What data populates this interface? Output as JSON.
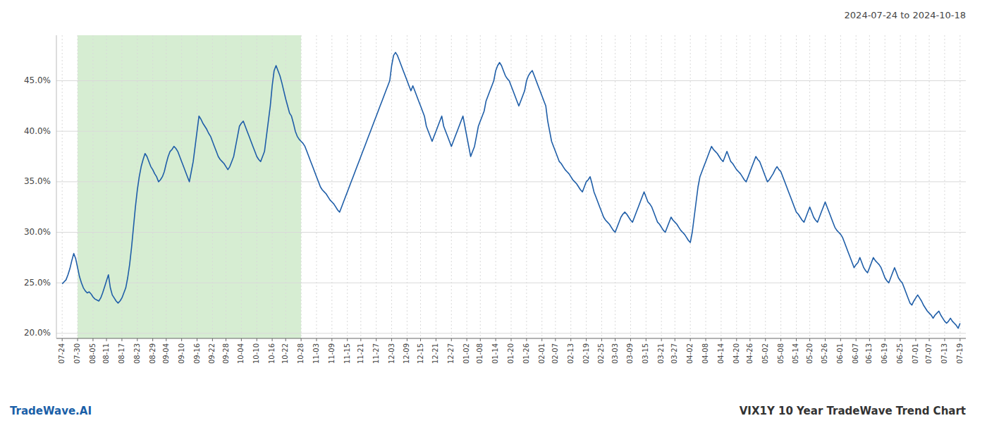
{
  "chart_data": {
    "type": "line",
    "title": "VIX1Y 10 Year TradeWave Trend Chart",
    "subtitle": "2024-07-24 to 2024-10-18",
    "annotations": [
      "TradeWave.AI"
    ],
    "color": "#1f5ea8",
    "grid": true,
    "highlight": {
      "start": "07-30",
      "end": "10-28",
      "color": "#d6edd2"
    },
    "ylim": [
      19.5,
      49.5
    ],
    "yticks": [
      {
        "value": 20.0,
        "label": "20.0%"
      },
      {
        "value": 25.0,
        "label": "25.0%"
      },
      {
        "value": 30.0,
        "label": "30.0%"
      },
      {
        "value": 35.0,
        "label": "35.0%"
      },
      {
        "value": 40.0,
        "label": "40.0%"
      },
      {
        "value": 45.0,
        "label": "45.0%"
      }
    ],
    "categories": [
      "07-24",
      null,
      null,
      null,
      null,
      null,
      null,
      null,
      "07-30",
      null,
      null,
      null,
      null,
      null,
      null,
      null,
      "08-05",
      null,
      null,
      null,
      null,
      null,
      null,
      "08-11",
      null,
      null,
      null,
      null,
      null,
      null,
      null,
      "08-17",
      null,
      null,
      null,
      null,
      null,
      null,
      null,
      "08-23",
      null,
      null,
      null,
      null,
      null,
      null,
      null,
      "08-29",
      null,
      null,
      null,
      null,
      null,
      null,
      "09-04",
      null,
      null,
      null,
      null,
      null,
      null,
      null,
      "09-10",
      null,
      null,
      null,
      null,
      null,
      null,
      null,
      "09-16",
      null,
      null,
      null,
      null,
      null,
      null,
      null,
      "09-22",
      null,
      null,
      null,
      null,
      null,
      null,
      "09-28",
      null,
      null,
      null,
      null,
      null,
      null,
      null,
      "10-04",
      null,
      null,
      null,
      null,
      null,
      null,
      null,
      "10-10",
      null,
      null,
      null,
      null,
      null,
      null,
      null,
      "10-16",
      null,
      null,
      null,
      null,
      null,
      null,
      "10-22",
      null,
      null,
      null,
      null,
      null,
      null,
      null,
      "10-28",
      null,
      null,
      null,
      null,
      null,
      null,
      null,
      "11-03",
      null,
      null,
      null,
      null,
      null,
      null,
      null,
      "11-09",
      null,
      null,
      null,
      null,
      null,
      null,
      null,
      "11-15",
      null,
      null,
      null,
      null,
      null,
      null,
      "11-21",
      null,
      null,
      null,
      null,
      null,
      null,
      null,
      "11-27",
      null,
      null,
      null,
      null,
      null,
      null,
      null,
      "12-03",
      null,
      null,
      null,
      null,
      null,
      null,
      null,
      "12-09",
      null,
      null,
      null,
      null,
      null,
      null,
      "12-15",
      null,
      null,
      null,
      null,
      null,
      null,
      null,
      "12-21",
      null,
      null,
      null,
      null,
      null,
      null,
      null,
      "12-27",
      null,
      null,
      null,
      null,
      null,
      null,
      null,
      "01-02",
      null,
      null,
      null,
      null,
      null,
      null,
      "01-08",
      null,
      null,
      null,
      null,
      null,
      null,
      null,
      "01-14",
      null,
      null,
      null,
      null,
      null,
      null,
      null,
      "01-20",
      null,
      null,
      null,
      null,
      null,
      null,
      null,
      "01-26",
      null,
      null,
      null,
      null,
      null,
      null,
      null,
      "02-01",
      null,
      null,
      null,
      null,
      null,
      null,
      "02-07",
      null,
      null,
      null,
      null,
      null,
      null,
      null,
      "02-13",
      null,
      null,
      null,
      null,
      null,
      null,
      null,
      "02-19",
      null,
      null,
      null,
      null,
      null,
      null,
      null,
      "02-25",
      null,
      null,
      null,
      null,
      null,
      null,
      "03-03",
      null,
      null,
      null,
      null,
      null,
      null,
      null,
      "03-09",
      null,
      null,
      null,
      null,
      null,
      null,
      null,
      "03-15",
      null,
      null,
      null,
      null,
      null,
      null,
      null,
      "03-21",
      null,
      null,
      null,
      null,
      null,
      null,
      "03-27",
      null,
      null,
      null,
      null,
      null,
      null,
      null,
      "04-02",
      null,
      null,
      null,
      null,
      null,
      null,
      null,
      "04-08",
      null,
      null,
      null,
      null,
      null,
      null,
      null,
      "04-14",
      null,
      null,
      null,
      null,
      null,
      null,
      null,
      "04-20",
      null,
      null,
      null,
      null,
      null,
      null,
      "04-26",
      null,
      null,
      null,
      null,
      null,
      null,
      null,
      "05-02",
      null,
      null,
      null,
      null,
      null,
      null,
      null,
      "05-08",
      null,
      null,
      null,
      null,
      null,
      null,
      null,
      "05-14",
      null,
      null,
      null,
      null,
      null,
      null,
      "05-20",
      null,
      null,
      null,
      null,
      null,
      null,
      null,
      "05-26",
      null,
      null,
      null,
      null,
      null,
      null,
      null,
      "06-01",
      null,
      null,
      null,
      null,
      null,
      null,
      null,
      "06-07",
      null,
      null,
      null,
      null,
      null,
      null,
      "06-13",
      null,
      null,
      null,
      null,
      null,
      null,
      null,
      "06-19",
      null,
      null,
      null,
      null,
      null,
      null,
      null,
      "06-25",
      null,
      null,
      null,
      null,
      null,
      null,
      null,
      "07-01",
      null,
      null,
      null,
      null,
      null,
      null,
      "07-07",
      null,
      null,
      null,
      null,
      null,
      null,
      null,
      "07-13",
      null,
      null,
      null,
      null,
      null,
      null,
      null,
      "07-19"
    ],
    "values": [
      24.9,
      25.1,
      25.3,
      25.8,
      26.4,
      27.2,
      27.9,
      27.4,
      26.5,
      25.6,
      25.0,
      24.5,
      24.2,
      24.0,
      24.1,
      23.9,
      23.6,
      23.4,
      23.3,
      23.2,
      23.5,
      24.0,
      24.6,
      25.2,
      25.8,
      24.5,
      23.8,
      23.5,
      23.2,
      23.0,
      23.2,
      23.5,
      24.0,
      24.5,
      25.5,
      26.8,
      28.5,
      30.5,
      32.5,
      34.2,
      35.5,
      36.5,
      37.2,
      37.8,
      37.5,
      37.0,
      36.5,
      36.2,
      35.8,
      35.5,
      35.0,
      35.2,
      35.5,
      36.0,
      36.8,
      37.5,
      38.0,
      38.2,
      38.5,
      38.3,
      38.0,
      37.5,
      37.0,
      36.5,
      36.0,
      35.5,
      35.0,
      36.0,
      37.0,
      38.5,
      40.0,
      41.5,
      41.2,
      40.8,
      40.5,
      40.2,
      39.8,
      39.5,
      39.0,
      38.5,
      38.0,
      37.5,
      37.2,
      37.0,
      36.8,
      36.5,
      36.2,
      36.5,
      37.0,
      37.5,
      38.5,
      39.5,
      40.5,
      40.8,
      41.0,
      40.5,
      40.0,
      39.5,
      39.0,
      38.5,
      38.0,
      37.5,
      37.2,
      37.0,
      37.5,
      38.0,
      39.5,
      41.0,
      42.5,
      44.5,
      46.0,
      46.5,
      46.0,
      45.5,
      44.8,
      44.0,
      43.2,
      42.5,
      41.8,
      41.5,
      40.8,
      40.0,
      39.5,
      39.2,
      39.0,
      38.8,
      38.5,
      38.0,
      37.5,
      37.0,
      36.5,
      36.0,
      35.5,
      35.0,
      34.5,
      34.2,
      34.0,
      33.8,
      33.5,
      33.2,
      33.0,
      32.8,
      32.5,
      32.2,
      32.0,
      32.5,
      33.0,
      33.5,
      34.0,
      34.5,
      35.0,
      35.5,
      36.0,
      36.5,
      37.0,
      37.5,
      38.0,
      38.5,
      39.0,
      39.5,
      40.0,
      40.5,
      41.0,
      41.5,
      42.0,
      42.5,
      43.0,
      43.5,
      44.0,
      44.5,
      45.0,
      46.5,
      47.5,
      47.8,
      47.5,
      47.0,
      46.5,
      46.0,
      45.5,
      45.0,
      44.5,
      44.0,
      44.5,
      44.0,
      43.5,
      43.0,
      42.5,
      42.0,
      41.5,
      40.5,
      40.0,
      39.5,
      39.0,
      39.5,
      40.0,
      40.5,
      41.0,
      41.5,
      40.5,
      40.0,
      39.5,
      39.0,
      38.5,
      39.0,
      39.5,
      40.0,
      40.5,
      41.0,
      41.5,
      40.5,
      39.5,
      38.5,
      37.5,
      38.0,
      38.5,
      39.5,
      40.5,
      41.0,
      41.5,
      42.0,
      43.0,
      43.5,
      44.0,
      44.5,
      45.0,
      46.0,
      46.5,
      46.8,
      46.5,
      46.0,
      45.5,
      45.2,
      45.0,
      44.5,
      44.0,
      43.5,
      43.0,
      42.5,
      43.0,
      43.5,
      44.0,
      45.0,
      45.5,
      45.8,
      46.0,
      45.5,
      45.0,
      44.5,
      44.0,
      43.5,
      43.0,
      42.5,
      41.0,
      40.0,
      39.0,
      38.5,
      38.0,
      37.5,
      37.0,
      36.8,
      36.5,
      36.2,
      36.0,
      35.8,
      35.5,
      35.2,
      35.0,
      34.8,
      34.5,
      34.2,
      34.0,
      34.5,
      35.0,
      35.2,
      35.5,
      34.8,
      34.0,
      33.5,
      33.0,
      32.5,
      32.0,
      31.5,
      31.2,
      31.0,
      30.8,
      30.5,
      30.2,
      30.0,
      30.5,
      31.0,
      31.5,
      31.8,
      32.0,
      31.8,
      31.5,
      31.2,
      31.0,
      31.5,
      32.0,
      32.5,
      33.0,
      33.5,
      34.0,
      33.5,
      33.0,
      32.8,
      32.5,
      32.0,
      31.5,
      31.0,
      30.8,
      30.5,
      30.2,
      30.0,
      30.5,
      31.0,
      31.5,
      31.2,
      31.0,
      30.8,
      30.5,
      30.2,
      30.0,
      29.8,
      29.5,
      29.2,
      29.0,
      30.0,
      31.5,
      33.0,
      34.5,
      35.5,
      36.0,
      36.5,
      37.0,
      37.5,
      38.0,
      38.5,
      38.2,
      38.0,
      37.8,
      37.5,
      37.2,
      37.0,
      37.5,
      38.0,
      37.5,
      37.0,
      36.8,
      36.5,
      36.2,
      36.0,
      35.8,
      35.5,
      35.2,
      35.0,
      35.5,
      36.0,
      36.5,
      37.0,
      37.5,
      37.2,
      37.0,
      36.5,
      36.0,
      35.5,
      35.0,
      35.2,
      35.5,
      35.8,
      36.2,
      36.5,
      36.2,
      36.0,
      35.5,
      35.0,
      34.5,
      34.0,
      33.5,
      33.0,
      32.5,
      32.0,
      31.8,
      31.5,
      31.2,
      31.0,
      31.5,
      32.0,
      32.5,
      32.0,
      31.5,
      31.2,
      31.0,
      31.5,
      32.0,
      32.5,
      33.0,
      32.5,
      32.0,
      31.5,
      31.0,
      30.5,
      30.2,
      30.0,
      29.8,
      29.5,
      29.0,
      28.5,
      28.0,
      27.5,
      27.0,
      26.5,
      26.8,
      27.0,
      27.5,
      27.0,
      26.5,
      26.2,
      26.0,
      26.5,
      27.0,
      27.5,
      27.2,
      27.0,
      26.8,
      26.5,
      26.0,
      25.5,
      25.2,
      25.0,
      25.5,
      26.0,
      26.5,
      26.0,
      25.5,
      25.2,
      25.0,
      24.5,
      24.0,
      23.5,
      23.0,
      22.8,
      23.2,
      23.5,
      23.8,
      23.5,
      23.2,
      22.8,
      22.5,
      22.2,
      22.0,
      21.8,
      21.5,
      21.8,
      22.0,
      22.2,
      21.8,
      21.5,
      21.2,
      21.0,
      21.2,
      21.5,
      21.2,
      21.0,
      20.8,
      20.5,
      21.0
    ]
  }
}
